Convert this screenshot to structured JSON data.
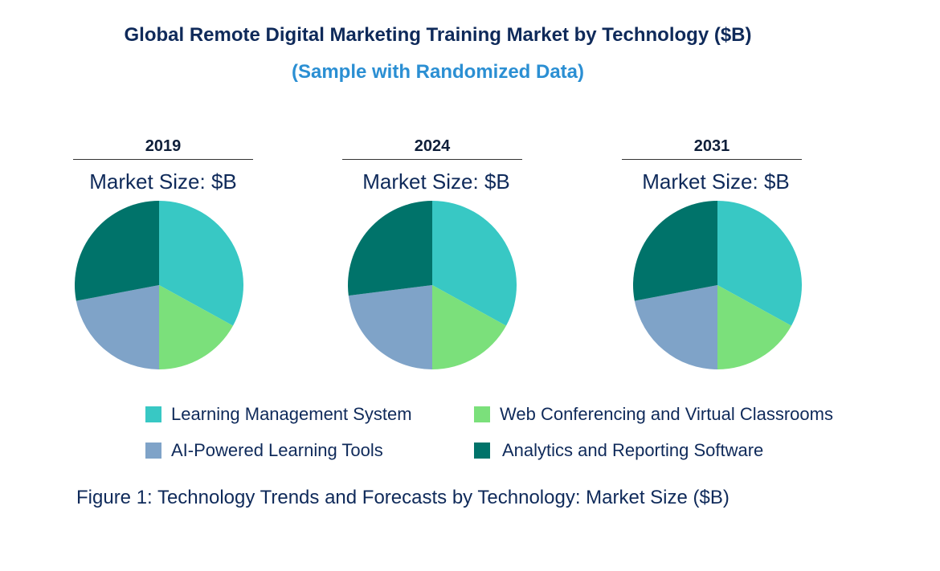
{
  "chart_data": {
    "type": "pie",
    "title": "Global Remote Digital Marketing Training Market by Technology ($B)",
    "subtitle": "(Sample with Randomized Data)",
    "caption": "Figure 1: Technology Trends and Forecasts by Technology: Market Size ($B)",
    "categories": [
      "Learning Management System",
      "Web Conferencing and Virtual Classrooms",
      "AI-Powered Learning Tools",
      "Analytics and Reporting Software"
    ],
    "colors": [
      "#38c8c4",
      "#7be07b",
      "#7fa3c8",
      "#00736a"
    ],
    "legend_position": "bottom",
    "pies": [
      {
        "year": "2019",
        "label": "Market Size: $B",
        "values": [
          33,
          17,
          22,
          28
        ]
      },
      {
        "year": "2024",
        "label": "Market Size: $B",
        "values": [
          33,
          17,
          23,
          27
        ]
      },
      {
        "year": "2031",
        "label": "Market Size: $B",
        "values": [
          33,
          17,
          22,
          28
        ]
      }
    ]
  }
}
